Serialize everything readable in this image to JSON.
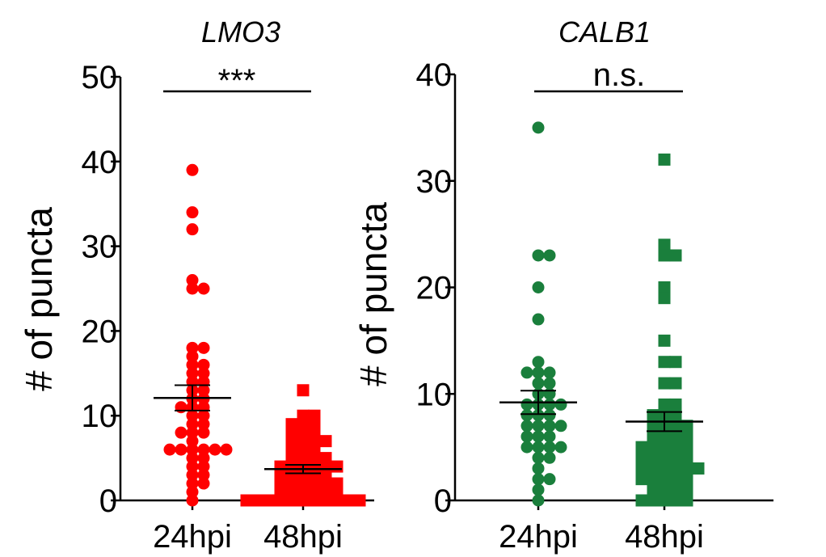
{
  "chart_data": [
    {
      "type": "scatter",
      "title": "LMO3",
      "ylabel": "# of puncta",
      "xlabel": "",
      "ylim": [
        0,
        50
      ],
      "yticks": [
        0,
        10,
        20,
        30,
        40,
        50
      ],
      "categories": [
        "24hpi",
        "48hpi"
      ],
      "color": "#ff0000",
      "significance": "***",
      "series": [
        {
          "name": "24hpi",
          "marker": "circle",
          "mean": 12.1,
          "sem": 1.5,
          "values": [
            39,
            34,
            32,
            26,
            25,
            25,
            18,
            18,
            17,
            16,
            16,
            15,
            15,
            14,
            14,
            13,
            13,
            12,
            12,
            11,
            11,
            11,
            10,
            10,
            9,
            9,
            8,
            8,
            8,
            7,
            6,
            6,
            6,
            6,
            6,
            6,
            5,
            5,
            4,
            4,
            3,
            3,
            2,
            2,
            1,
            0
          ]
        },
        {
          "name": "48hpi",
          "marker": "square",
          "mean": 3.7,
          "sem": 0.5,
          "values": [
            13,
            10,
            10,
            9,
            9,
            9,
            8,
            8,
            8,
            7,
            7,
            7,
            7,
            6,
            6,
            6,
            5,
            5,
            5,
            5,
            4,
            4,
            4,
            4,
            4,
            4,
            3,
            3,
            3,
            3,
            3,
            2,
            2,
            2,
            2,
            2,
            2,
            1,
            1,
            1,
            1,
            1,
            1,
            0,
            0,
            0,
            0,
            0,
            0,
            0,
            0,
            0,
            0,
            0
          ]
        }
      ]
    },
    {
      "type": "scatter",
      "title": "CALB1",
      "ylabel": "# of puncta",
      "xlabel": "",
      "ylim": [
        0,
        40
      ],
      "yticks": [
        0,
        10,
        20,
        30,
        40
      ],
      "categories": [
        "24hpi",
        "48hpi"
      ],
      "color": "#1a7f3c",
      "significance": "n.s.",
      "series": [
        {
          "name": "24hpi",
          "marker": "circle",
          "mean": 9.2,
          "sem": 1.1,
          "values": [
            35,
            23,
            23,
            20,
            17,
            13,
            12,
            12,
            12,
            11,
            11,
            10,
            10,
            9,
            9,
            9,
            9,
            8,
            8,
            8,
            7,
            7,
            7,
            7,
            6,
            6,
            6,
            5,
            5,
            5,
            5,
            4,
            4,
            3,
            2,
            2,
            1,
            0
          ]
        },
        {
          "name": "48hpi",
          "marker": "square",
          "mean": 7.4,
          "sem": 0.9,
          "values": [
            32,
            24,
            23,
            23,
            20,
            19,
            15,
            13,
            13,
            11,
            11,
            9,
            9,
            8,
            8,
            8,
            7,
            7,
            7,
            7,
            6,
            6,
            6,
            6,
            5,
            5,
            5,
            5,
            5,
            4,
            4,
            4,
            4,
            4,
            3,
            3,
            3,
            3,
            3,
            3,
            2,
            2,
            2,
            2,
            2,
            1,
            1,
            1,
            1,
            0,
            0,
            0,
            0,
            0
          ]
        }
      ]
    }
  ]
}
